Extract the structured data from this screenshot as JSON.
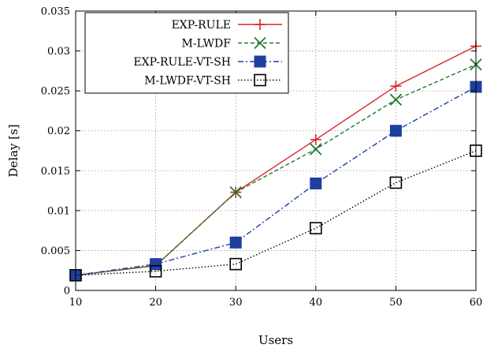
{
  "chart_data": {
    "type": "line",
    "title": "",
    "xlabel": "Users",
    "ylabel": "Delay [s]",
    "x": [
      10,
      20,
      30,
      40,
      50,
      60
    ],
    "xlim": [
      10,
      60
    ],
    "ylim": [
      0,
      0.035
    ],
    "x_ticks": [
      "10",
      "20",
      "30",
      "40",
      "50",
      "60"
    ],
    "y_ticks": [
      "0",
      "0.005",
      "0.01",
      "0.015",
      "0.02",
      "0.025",
      "0.03",
      "0.035"
    ],
    "grid": true,
    "legend_position": "top-left",
    "series": [
      {
        "name": "EXP-RULE",
        "color": "#d62728",
        "marker": "plus",
        "dash": "solid",
        "values": [
          0.0019,
          0.0031,
          0.0123,
          0.0189,
          0.0256,
          0.0306
        ]
      },
      {
        "name": "M-LWDF",
        "color": "#1e7a2e",
        "marker": "x",
        "dash": "dashed",
        "values": [
          0.0019,
          0.0031,
          0.0123,
          0.0177,
          0.0239,
          0.0283
        ]
      },
      {
        "name": "EXP-RULE-VT-SH",
        "color": "#1f3f9f",
        "marker": "filled-square",
        "dash": "dashdot",
        "values": [
          0.0019,
          0.0033,
          0.006,
          0.0134,
          0.02,
          0.0255
        ]
      },
      {
        "name": "M-LWDF-VT-SH",
        "color": "#000000",
        "marker": "open-square",
        "dash": "dotted",
        "values": [
          0.0019,
          0.0024,
          0.0033,
          0.0078,
          0.0135,
          0.0175
        ]
      }
    ]
  }
}
